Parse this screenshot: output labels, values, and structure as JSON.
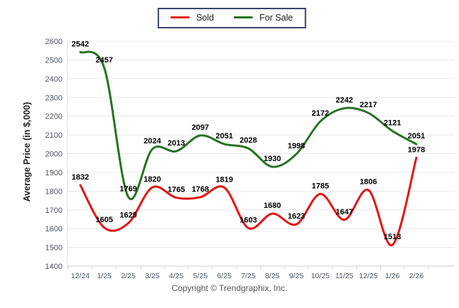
{
  "footer": {
    "copyright": "Copyright © Trendgraphix, Inc."
  },
  "legend": {
    "border_color": "#35466b"
  },
  "chart_data": {
    "type": "line",
    "title": "",
    "ylabel": "Average Price (in $,000)",
    "xlabel": "",
    "ylim": [
      1400,
      2600
    ],
    "ytick_step": 100,
    "ytick_labels": [
      "1400",
      "1500",
      "1600",
      "1700",
      "1800",
      "1900",
      "2000",
      "2100",
      "2200",
      "2300",
      "2400",
      "2500",
      "2600"
    ],
    "grid": true,
    "legend_position": "top-center",
    "line_smoothing": "spline",
    "data_labels_shown": true,
    "categories": [
      "12/24",
      "1/25",
      "2/25",
      "3/25",
      "4/25",
      "5/25",
      "6/25",
      "7/25",
      "8/25",
      "9/25",
      "10/25",
      "11/25",
      "12/25",
      "1/26",
      "2/26"
    ],
    "series": [
      {
        "name": "Sold",
        "color": "#e51414",
        "values": [
          1832,
          1605,
          1629,
          1820,
          1765,
          1768,
          1819,
          1603,
          1680,
          1623,
          1785,
          1647,
          1806,
          1513,
          1978
        ]
      },
      {
        "name": "For Sale",
        "color": "#277223",
        "values": [
          2542,
          2457,
          1769,
          2024,
          2013,
          2097,
          2051,
          2028,
          1930,
          1998,
          2172,
          2242,
          2217,
          2121,
          2051
        ]
      }
    ]
  }
}
